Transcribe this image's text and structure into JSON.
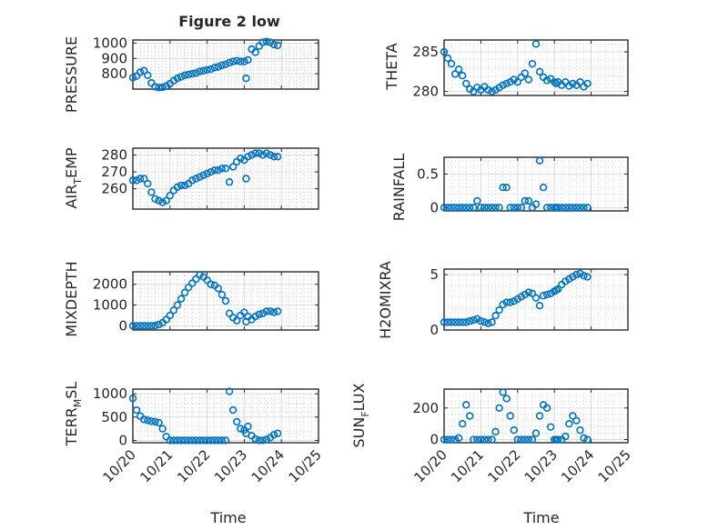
{
  "title": "Figure 2 low",
  "colors": {
    "series": "#0072BD",
    "axes": "#262626",
    "grid": "#d0d0d0"
  },
  "chart_data": [
    {
      "type": "scatter",
      "panel": "left-1",
      "ylabel": "PRESSURE",
      "xlim": [
        0,
        5
      ],
      "ylim": [
        700,
        1020
      ],
      "yticks": [
        800,
        900,
        1000
      ],
      "x": [
        0,
        0.1,
        0.2,
        0.3,
        0.4,
        0.5,
        0.6,
        0.7,
        0.8,
        0.9,
        1.0,
        1.1,
        1.2,
        1.3,
        1.4,
        1.5,
        1.6,
        1.7,
        1.8,
        1.9,
        2.0,
        2.1,
        2.2,
        2.3,
        2.4,
        2.5,
        2.6,
        2.7,
        2.8,
        2.9,
        3.0,
        3.05,
        3.1,
        3.2,
        3.3,
        3.4,
        3.5,
        3.6,
        3.7,
        3.8,
        3.9
      ],
      "y": [
        775,
        785,
        810,
        820,
        790,
        740,
        715,
        710,
        712,
        720,
        735,
        755,
        770,
        780,
        790,
        795,
        800,
        805,
        815,
        820,
        825,
        830,
        840,
        845,
        855,
        862,
        872,
        880,
        885,
        880,
        880,
        770,
        890,
        960,
        940,
        980,
        1005,
        1010,
        1005,
        990,
        985
      ]
    },
    {
      "type": "scatter",
      "panel": "right-1",
      "ylabel": "THETA",
      "xlim": [
        0,
        5
      ],
      "ylim": [
        279.5,
        286.5
      ],
      "yticks": [
        280,
        285
      ],
      "x": [
        0,
        0.1,
        0.2,
        0.3,
        0.4,
        0.5,
        0.6,
        0.7,
        0.8,
        0.9,
        1.0,
        1.1,
        1.2,
        1.3,
        1.4,
        1.5,
        1.6,
        1.7,
        1.8,
        1.9,
        2.0,
        2.1,
        2.2,
        2.3,
        2.4,
        2.5,
        2.6,
        2.7,
        2.8,
        2.9,
        3.0,
        3.05,
        3.1,
        3.2,
        3.3,
        3.4,
        3.5,
        3.6,
        3.7,
        3.8,
        3.9
      ],
      "y": [
        285,
        284.2,
        283.5,
        282.2,
        282.8,
        282,
        281,
        280.3,
        280,
        280.5,
        280.2,
        280.6,
        280.2,
        280,
        280.2,
        280.5,
        280.8,
        281,
        281.2,
        281.5,
        281.2,
        281.8,
        282.3,
        281.5,
        283.5,
        286,
        282.5,
        281.8,
        281.4,
        281.6,
        281.2,
        281,
        281.2,
        280.8,
        281.2,
        280.7,
        281,
        280.8,
        281.2,
        280.6,
        281
      ]
    },
    {
      "type": "scatter",
      "panel": "left-2",
      "ylabel": "AIR_TEMP",
      "xlim": [
        0,
        5
      ],
      "ylim": [
        248,
        284
      ],
      "yticks": [
        260,
        270,
        280
      ],
      "x": [
        0,
        0.1,
        0.2,
        0.3,
        0.4,
        0.5,
        0.6,
        0.7,
        0.8,
        0.9,
        1.0,
        1.1,
        1.2,
        1.3,
        1.4,
        1.5,
        1.6,
        1.7,
        1.8,
        1.9,
        2.0,
        2.1,
        2.2,
        2.3,
        2.4,
        2.5,
        2.6,
        2.7,
        2.8,
        2.9,
        3.0,
        3.05,
        3.1,
        3.2,
        3.3,
        3.4,
        3.5,
        3.6,
        3.7,
        3.8,
        3.9
      ],
      "y": [
        265,
        265,
        266,
        266,
        263,
        258,
        254,
        253,
        252,
        253,
        256,
        259,
        261,
        262,
        262,
        263,
        265,
        266,
        267,
        268,
        269,
        270,
        271,
        271,
        272,
        272,
        264,
        273,
        276,
        278,
        277,
        266,
        279,
        280,
        281,
        281,
        280,
        281,
        280,
        279,
        279
      ]
    },
    {
      "type": "scatter",
      "panel": "right-2",
      "ylabel": "RAINFALL",
      "xlim": [
        0,
        5
      ],
      "ylim": [
        -0.05,
        0.75
      ],
      "yticks": [
        0,
        0.5
      ],
      "x": [
        0,
        0.1,
        0.2,
        0.3,
        0.4,
        0.5,
        0.6,
        0.7,
        0.8,
        0.9,
        1.0,
        1.1,
        1.2,
        1.3,
        1.4,
        1.5,
        1.6,
        1.7,
        1.8,
        1.9,
        2.0,
        2.1,
        2.2,
        2.3,
        2.4,
        2.5,
        2.6,
        2.7,
        2.8,
        2.9,
        3.0,
        3.05,
        3.1,
        3.2,
        3.3,
        3.4,
        3.5,
        3.6,
        3.7,
        3.8,
        3.9
      ],
      "y": [
        0,
        0,
        0,
        0,
        0,
        0,
        0,
        0,
        0,
        0.1,
        0,
        0,
        0,
        0,
        0,
        0,
        0.3,
        0.3,
        0,
        0,
        0,
        0,
        0.1,
        0.1,
        0,
        0.05,
        0.7,
        0.3,
        0,
        0,
        0,
        0,
        0,
        0,
        0,
        0,
        0,
        0,
        0,
        0,
        0
      ]
    },
    {
      "type": "scatter",
      "panel": "left-3",
      "ylabel": "MIXDEPTH",
      "xlim": [
        0,
        5
      ],
      "ylim": [
        -200,
        2600
      ],
      "yticks": [
        0,
        1000,
        2000
      ],
      "x": [
        0,
        0.1,
        0.2,
        0.3,
        0.4,
        0.5,
        0.6,
        0.7,
        0.8,
        0.9,
        1.0,
        1.1,
        1.2,
        1.3,
        1.4,
        1.5,
        1.6,
        1.7,
        1.8,
        1.9,
        2.0,
        2.1,
        2.2,
        2.3,
        2.4,
        2.5,
        2.6,
        2.7,
        2.8,
        2.9,
        3.0,
        3.05,
        3.1,
        3.2,
        3.3,
        3.4,
        3.5,
        3.6,
        3.7,
        3.8,
        3.9
      ],
      "y": [
        0,
        0,
        0,
        0,
        0,
        0,
        10,
        60,
        150,
        300,
        500,
        750,
        1000,
        1300,
        1600,
        1850,
        2050,
        2250,
        2450,
        2350,
        2200,
        2000,
        1950,
        1800,
        1500,
        1200,
        600,
        400,
        250,
        500,
        650,
        200,
        450,
        300,
        450,
        550,
        600,
        700,
        700,
        650,
        700
      ]
    },
    {
      "type": "scatter",
      "panel": "right-3",
      "ylabel": "H2OMIXRA",
      "xlim": [
        0,
        5
      ],
      "ylim": [
        0,
        5.5
      ],
      "yticks": [
        0,
        5
      ],
      "x": [
        0,
        0.1,
        0.2,
        0.3,
        0.4,
        0.5,
        0.6,
        0.7,
        0.8,
        0.9,
        1.0,
        1.1,
        1.2,
        1.3,
        1.4,
        1.5,
        1.6,
        1.7,
        1.8,
        1.9,
        2.0,
        2.1,
        2.2,
        2.3,
        2.4,
        2.5,
        2.6,
        2.7,
        2.8,
        2.9,
        3.0,
        3.05,
        3.1,
        3.2,
        3.3,
        3.4,
        3.5,
        3.6,
        3.7,
        3.8,
        3.9
      ],
      "y": [
        0.7,
        0.7,
        0.7,
        0.7,
        0.7,
        0.7,
        0.7,
        0.8,
        0.9,
        1.0,
        0.8,
        0.7,
        0.6,
        0.7,
        1.3,
        1.8,
        2.3,
        2.5,
        2.5,
        2.6,
        2.8,
        3.0,
        3.2,
        3.4,
        3.3,
        2.9,
        2.2,
        3.1,
        3.2,
        3.3,
        3.5,
        3.6,
        3.7,
        4.1,
        4.4,
        4.6,
        4.8,
        5.0,
        5.1,
        4.9,
        4.8
      ]
    },
    {
      "type": "scatter",
      "panel": "left-4",
      "ylabel": "TERR_MSL",
      "xlim": [
        0,
        5
      ],
      "ylim": [
        -50,
        1100
      ],
      "yticks": [
        0,
        500,
        1000
      ],
      "x": [
        0,
        0.1,
        0.2,
        0.3,
        0.4,
        0.5,
        0.6,
        0.7,
        0.8,
        0.9,
        1.0,
        1.1,
        1.2,
        1.3,
        1.4,
        1.5,
        1.6,
        1.7,
        1.8,
        1.9,
        2.0,
        2.1,
        2.2,
        2.3,
        2.4,
        2.5,
        2.6,
        2.7,
        2.8,
        2.9,
        3.0,
        3.05,
        3.1,
        3.2,
        3.3,
        3.4,
        3.5,
        3.6,
        3.7,
        3.8,
        3.9
      ],
      "y": [
        900,
        650,
        520,
        450,
        430,
        410,
        400,
        380,
        250,
        80,
        0,
        0,
        0,
        0,
        0,
        0,
        0,
        0,
        0,
        0,
        0,
        0,
        0,
        0,
        0,
        0,
        1050,
        650,
        400,
        250,
        220,
        150,
        300,
        100,
        30,
        0,
        0,
        20,
        60,
        120,
        150
      ]
    },
    {
      "type": "scatter",
      "panel": "right-4",
      "ylabel": "SUN_FLUX",
      "xlim": [
        0,
        5
      ],
      "ylim": [
        -20,
        320
      ],
      "yticks": [
        0,
        200
      ],
      "x": [
        0,
        0.1,
        0.2,
        0.3,
        0.4,
        0.5,
        0.6,
        0.7,
        0.8,
        0.9,
        1.0,
        1.1,
        1.2,
        1.3,
        1.4,
        1.5,
        1.6,
        1.7,
        1.8,
        1.9,
        2.0,
        2.1,
        2.2,
        2.3,
        2.4,
        2.5,
        2.6,
        2.7,
        2.8,
        2.9,
        3.0,
        3.05,
        3.1,
        3.2,
        3.3,
        3.4,
        3.5,
        3.6,
        3.7,
        3.8,
        3.9
      ],
      "y": [
        0,
        0,
        0,
        0,
        10,
        100,
        220,
        150,
        0,
        0,
        0,
        0,
        0,
        0,
        50,
        200,
        300,
        260,
        150,
        60,
        0,
        0,
        0,
        0,
        0,
        40,
        150,
        220,
        200,
        80,
        0,
        0,
        0,
        0,
        20,
        100,
        150,
        120,
        60,
        10,
        0
      ]
    }
  ],
  "x_tick_labels": [
    "10/20",
    "10/21",
    "10/22",
    "10/23",
    "10/24",
    "10/25"
  ],
  "x_tick_values": [
    0,
    1,
    2,
    3,
    4,
    5
  ],
  "xlabel": "Time",
  "panel_ylabels": {
    "pressure": "PRESSURE",
    "theta": "THETA",
    "air_temp_main": "AIR",
    "air_temp_sub": "T",
    "air_temp_tail": "EMP",
    "rainfall": "RAINFALL",
    "mixdepth": "MIXDEPTH",
    "h2omixra": "H2OMIXRA",
    "terr_main": "TERR",
    "terr_sub": "M",
    "terr_tail": "SL",
    "sun_main": "SUN",
    "sun_sub": "F",
    "sun_tail": "LUX"
  }
}
